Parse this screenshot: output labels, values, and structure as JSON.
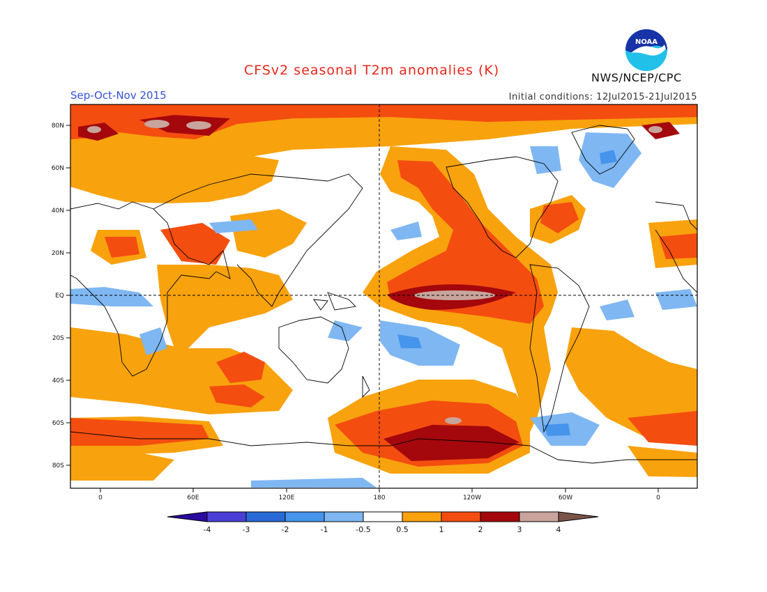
{
  "header": {
    "title": "CFSv2 seasonal T2m anomalies (K)",
    "season": "Sep-Oct-Nov 2015",
    "initial_conditions": "Initial conditions: 12Jul2015-21Jul2015",
    "organization": "NWS/NCEP/CPC",
    "logo_text": "NOAA"
  },
  "axes": {
    "lat_labels": [
      "80N",
      "60N",
      "40N",
      "20N",
      "EQ",
      "20S",
      "40S",
      "60S",
      "80S"
    ],
    "lon_labels": [
      "0",
      "60E",
      "120E",
      "180",
      "120W",
      "60W",
      "0"
    ]
  },
  "colorbar": {
    "labels": [
      "-4",
      "-3",
      "-2",
      "-1",
      "-0.5",
      "0.5",
      "1",
      "2",
      "3",
      "4"
    ],
    "colors": [
      "#2a0aa0",
      "#4a3fd3",
      "#2a6ad6",
      "#4694ec",
      "#7fb7f2",
      "#ffffff",
      "#f8a20d",
      "#f44d10",
      "#a4080c",
      "#c8a49c",
      "#7a5448"
    ]
  }
}
